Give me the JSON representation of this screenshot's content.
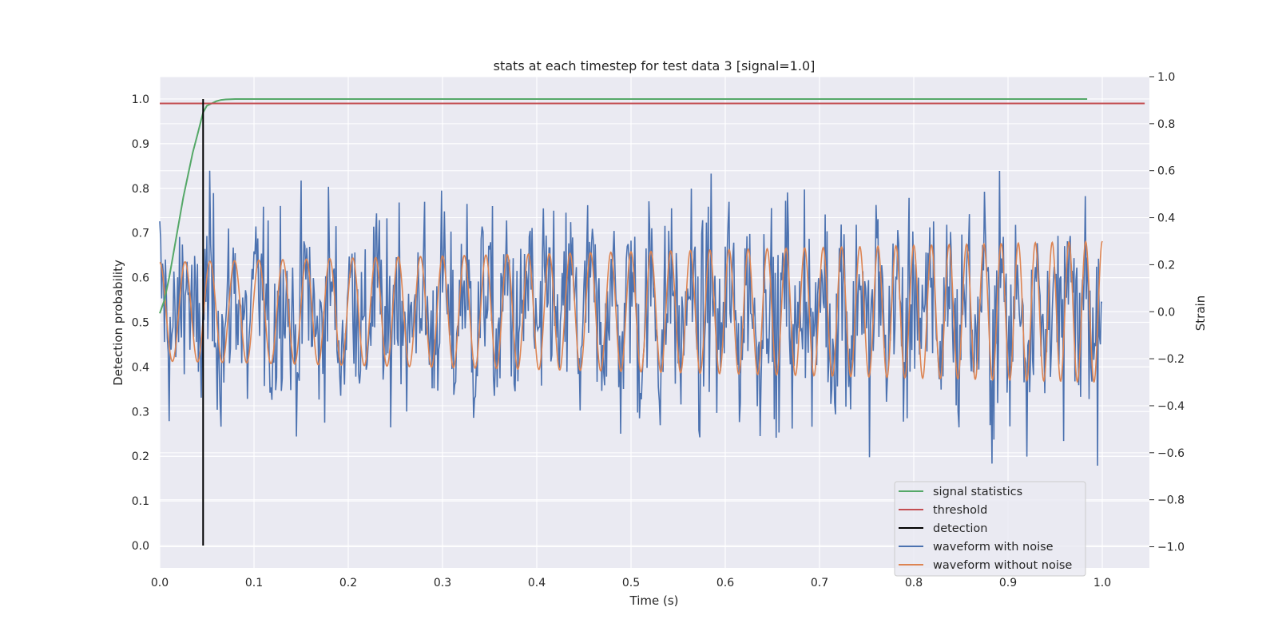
{
  "chart_data": {
    "type": "line",
    "title": "stats at each timestep for test data 3 [signal=1.0]",
    "xlabel": "Time (s)",
    "ylabel_left": "Detection probability",
    "ylabel_right": "Strain",
    "xlim": [
      0.0,
      1.05
    ],
    "ylim_left": [
      -0.05,
      1.05
    ],
    "ylim_right": [
      -1.09,
      1.0
    ],
    "xticks": [
      "0.0",
      "0.1",
      "0.2",
      "0.3",
      "0.4",
      "0.5",
      "0.6",
      "0.7",
      "0.8",
      "0.9",
      "1.0"
    ],
    "yticks_left": [
      "0.0",
      "0.1",
      "0.2",
      "0.3",
      "0.4",
      "0.5",
      "0.6",
      "0.7",
      "0.8",
      "0.9",
      "1.0"
    ],
    "yticks_right": [
      "−1.0",
      "−0.8",
      "−0.6",
      "−0.4",
      "−0.2",
      "0.0",
      "0.2",
      "0.4",
      "0.6",
      "0.8",
      "1.0"
    ],
    "grid": true,
    "legend_position": "lower-right",
    "colors": {
      "background": "#eaeaf2",
      "grid": "#ffffff",
      "signal_statistics": "#55a868",
      "threshold": "#c44e52",
      "detection": "#000000",
      "waveform_with_noise": "#4c72b0",
      "waveform_without_noise": "#dd8452"
    },
    "series": [
      {
        "name": "signal statistics",
        "axis": "left",
        "x": [
          0.0,
          0.005,
          0.01,
          0.015,
          0.02,
          0.025,
          0.03,
          0.035,
          0.04,
          0.046,
          0.05,
          0.055,
          0.06,
          0.065,
          0.07,
          0.08,
          0.09,
          0.1,
          0.2,
          0.4,
          0.6,
          0.8,
          0.984
        ],
        "y": [
          0.52,
          0.55,
          0.6,
          0.66,
          0.72,
          0.78,
          0.83,
          0.88,
          0.92,
          0.97,
          0.985,
          0.99,
          0.995,
          0.998,
          0.999,
          1.0,
          1.0,
          1.0,
          1.0,
          1.0,
          1.0,
          1.0,
          1.0
        ]
      },
      {
        "name": "threshold",
        "axis": "left",
        "x": [
          0.0,
          1.045
        ],
        "y": [
          0.99,
          0.99
        ]
      },
      {
        "name": "detection",
        "axis": "left",
        "x": [
          0.046,
          0.046
        ],
        "y": [
          0.0,
          1.0
        ]
      },
      {
        "name": "waveform with noise",
        "axis": "right",
        "noise_range": [
          -1.0,
          1.0
        ]
      },
      {
        "name": "waveform without noise",
        "axis": "right",
        "amplitude_start": 0.21,
        "amplitude_end": 0.3,
        "frequency_start_hz": 37,
        "frequency_end_hz": 57,
        "x_range": [
          0.0,
          1.0
        ]
      }
    ]
  }
}
